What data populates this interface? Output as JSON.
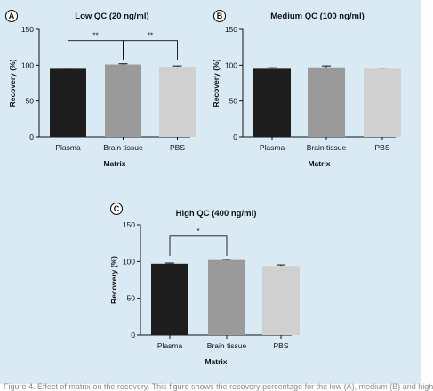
{
  "chart_data": [
    {
      "panel": "A",
      "type": "bar",
      "title": "Low QC (20 ng/ml)",
      "xlabel": "Matrix",
      "ylabel": "Recovery (%)",
      "ylim": [
        0,
        150
      ],
      "yticks": [
        0,
        50,
        100,
        150
      ],
      "categories": [
        "Plasma",
        "Brain tissue",
        "PBS"
      ],
      "values": [
        95,
        101,
        98
      ],
      "errors": [
        1,
        1,
        1
      ],
      "colors": [
        "#1d1d1d",
        "#9a9a9a",
        "#d0d0d0"
      ],
      "significance": [
        {
          "from": 0,
          "to": 1,
          "label": "**"
        },
        {
          "from": 1,
          "to": 2,
          "label": "**"
        }
      ]
    },
    {
      "panel": "B",
      "type": "bar",
      "title": "Medium QC (100 ng/ml)",
      "xlabel": "Matrix",
      "ylabel": "Recovery (%)",
      "ylim": [
        0,
        150
      ],
      "yticks": [
        0,
        50,
        100,
        150
      ],
      "categories": [
        "Plasma",
        "Brain tissue",
        "PBS"
      ],
      "values": [
        95,
        97,
        95
      ],
      "errors": [
        1.5,
        2,
        1
      ],
      "colors": [
        "#1d1d1d",
        "#9a9a9a",
        "#d0d0d0"
      ],
      "significance": []
    },
    {
      "panel": "C",
      "type": "bar",
      "title": "High QC (400 ng/ml)",
      "xlabel": "Matrix",
      "ylabel": "Recovery (%)",
      "ylim": [
        0,
        150
      ],
      "yticks": [
        0,
        50,
        100,
        150
      ],
      "categories": [
        "Plasma",
        "Brain tissue",
        "PBS"
      ],
      "values": [
        97,
        102,
        94
      ],
      "errors": [
        1,
        1,
        1.5
      ],
      "colors": [
        "#1d1d1d",
        "#9a9a9a",
        "#d0d0d0"
      ],
      "significance": [
        {
          "from": 0,
          "to": 1,
          "label": "*"
        }
      ]
    }
  ],
  "caption": "Figure 4. Effect of matrix on the recovery. This figure shows the recovery percentage for the low (A), medium (B) and high"
}
